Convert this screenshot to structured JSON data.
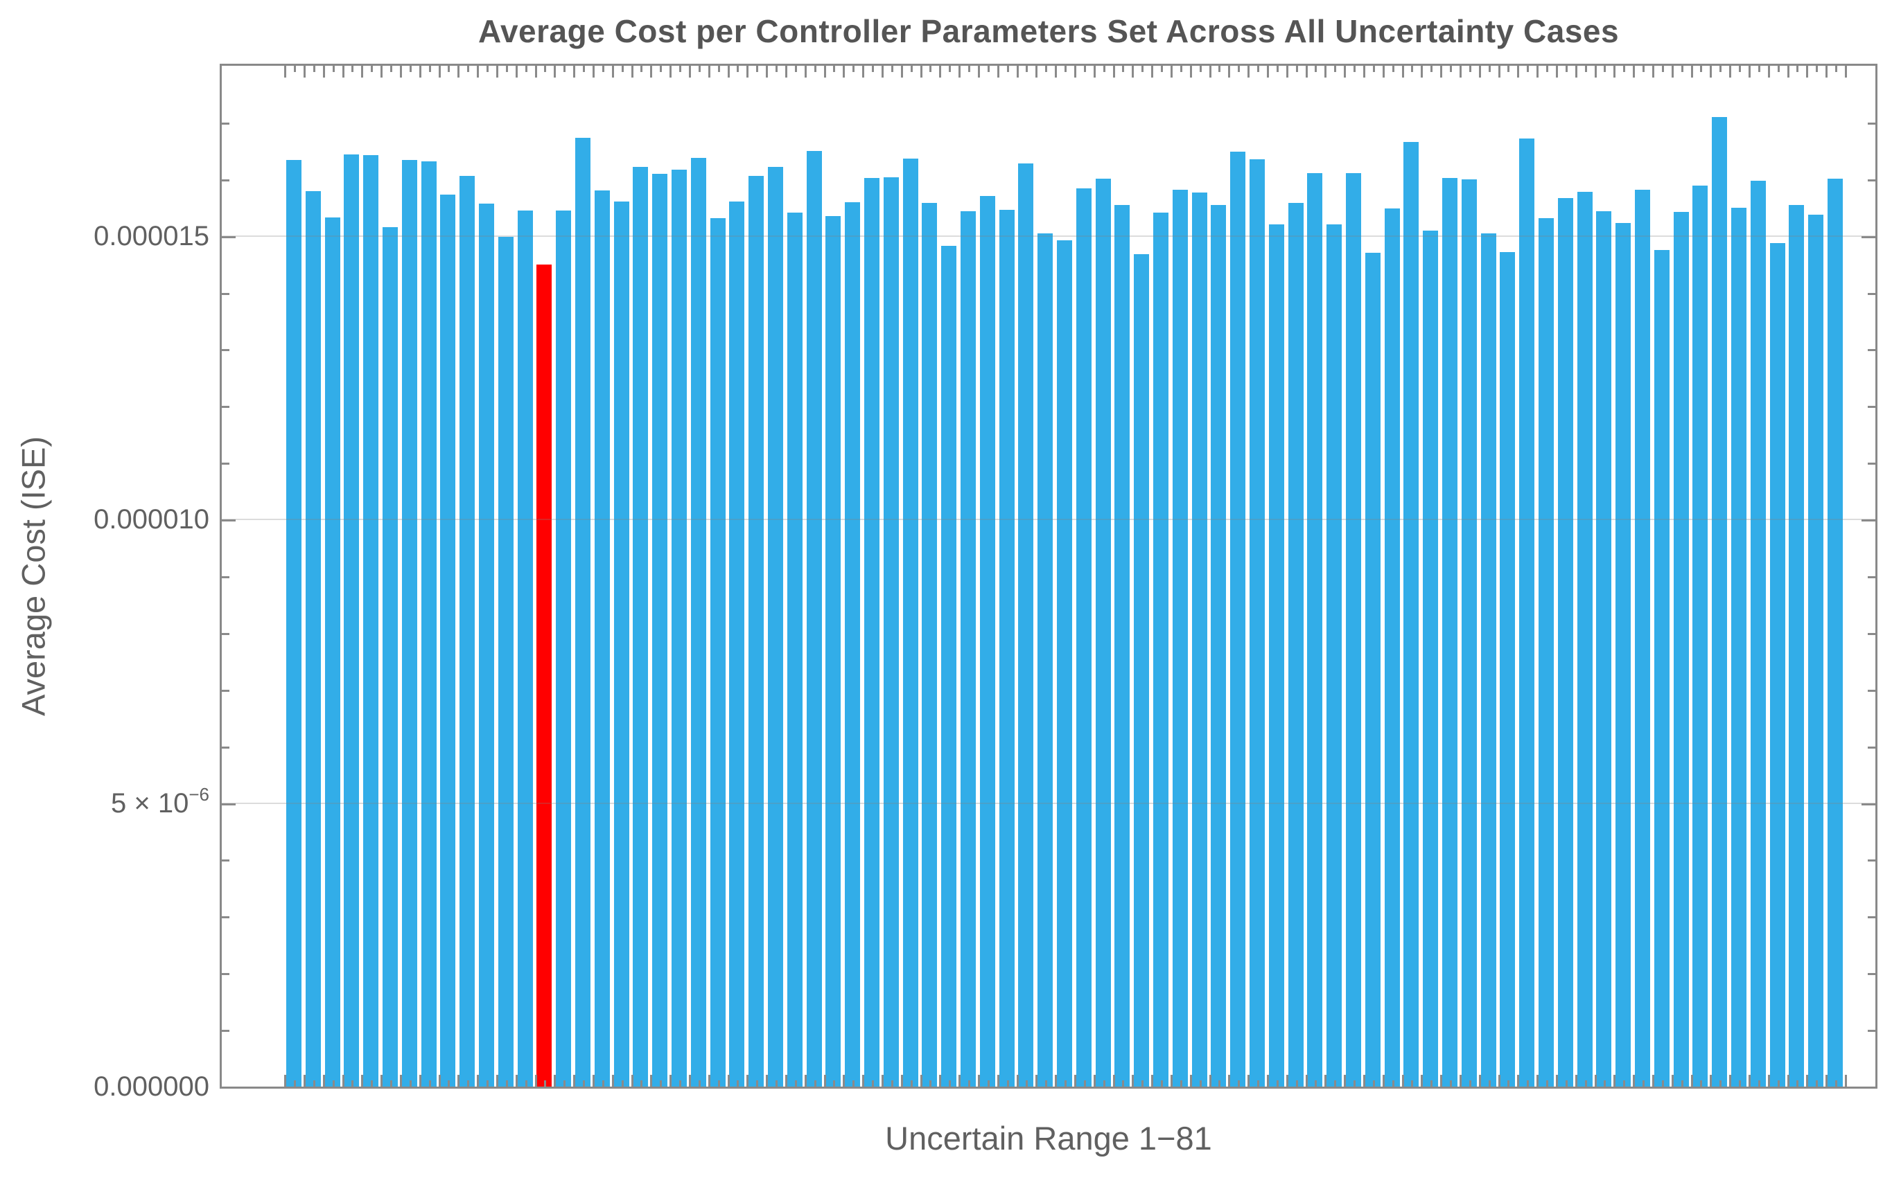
{
  "page": {
    "background": "#ffffff"
  },
  "chart_data": {
    "type": "bar",
    "title": "Average Cost per Controller Parameters Set Across All Uncertainty Cases",
    "xlabel": "Uncertain Range 1−81",
    "ylabel": "Average Cost (ISE)",
    "n_bars": 81,
    "x_first": 1,
    "x_last": 81,
    "values": [
      1.634e-05,
      1.579e-05,
      1.533e-05,
      1.644e-05,
      1.643e-05,
      1.516e-05,
      1.634e-05,
      1.631e-05,
      1.573e-05,
      1.606e-05,
      1.557e-05,
      1.498e-05,
      1.545e-05,
      1.449e-05,
      1.545e-05,
      1.673e-05,
      1.58e-05,
      1.561e-05,
      1.622e-05,
      1.61e-05,
      1.617e-05,
      1.638e-05,
      1.531e-05,
      1.561e-05,
      1.606e-05,
      1.622e-05,
      1.541e-05,
      1.65e-05,
      1.535e-05,
      1.56e-05,
      1.602e-05,
      1.603e-05,
      1.636e-05,
      1.558e-05,
      1.483e-05,
      1.544e-05,
      1.571e-05,
      1.546e-05,
      1.628e-05,
      1.505e-05,
      1.492e-05,
      1.584e-05,
      1.601e-05,
      1.555e-05,
      1.468e-05,
      1.541e-05,
      1.582e-05,
      1.577e-05,
      1.554e-05,
      1.649e-05,
      1.635e-05,
      1.521e-05,
      1.558e-05,
      1.611e-05,
      1.52e-05,
      1.611e-05,
      1.47e-05,
      1.549e-05,
      1.666e-05,
      1.51e-05,
      1.602e-05,
      1.6e-05,
      1.505e-05,
      1.472e-05,
      1.672e-05,
      1.531e-05,
      1.567e-05,
      1.578e-05,
      1.544e-05,
      1.523e-05,
      1.581e-05,
      1.475e-05,
      1.542e-05,
      1.589e-05,
      1.71e-05,
      1.55e-05,
      1.597e-05,
      1.487e-05,
      1.554e-05,
      1.538e-05,
      1.601e-05
    ],
    "highlight_index": 14,
    "bar_color": "#32ade8",
    "highlight_color": "#ff0000",
    "frame_color": "#898989",
    "grid_on": true,
    "grid_values": [
      5e-06,
      1e-05,
      1.5e-05
    ],
    "ylim": [
      0,
      1.8e-05
    ],
    "y_minor_tick_step": 1e-06,
    "yticks": [
      {
        "value": 0,
        "label": "0.000000"
      },
      {
        "value": 5e-06,
        "label": "5 × 10",
        "sup": "−6"
      },
      {
        "value": 1e-05,
        "label": "0.000010"
      },
      {
        "value": 1.5e-05,
        "label": "0.000015"
      }
    ],
    "legend": null
  }
}
